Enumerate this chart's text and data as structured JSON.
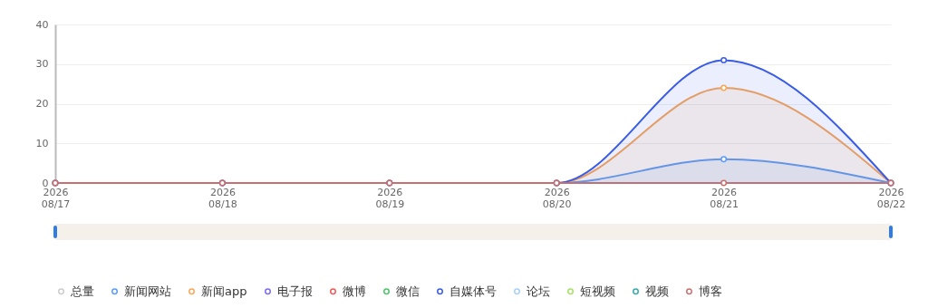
{
  "chart_data": {
    "type": "line",
    "categories": [
      "2026\n08/17",
      "2026\n08/18",
      "2026\n08/19",
      "2026\n08/20",
      "2026\n08/21",
      "2026\n08/22"
    ],
    "ylim": [
      0,
      40
    ],
    "yticks": [
      0,
      10,
      20,
      30,
      40
    ],
    "grid": "y",
    "legend": "bottom",
    "marker": "circle",
    "series": [
      {
        "name": "总量",
        "color": "#cccccc",
        "values": [
          null,
          null,
          null,
          null,
          null,
          null
        ]
      },
      {
        "name": "新闻网站",
        "type": "area",
        "color": "#5b9cf8",
        "values": [
          0,
          0,
          0,
          0,
          6,
          0
        ]
      },
      {
        "name": "新闻app",
        "type": "area",
        "color": "#f8a65a",
        "values": [
          0,
          0,
          0,
          0,
          24,
          0
        ]
      },
      {
        "name": "电子报",
        "color": "#7b6cf0",
        "values": [
          null,
          null,
          null,
          null,
          null,
          null
        ]
      },
      {
        "name": "微博",
        "color": "#f05a5a",
        "values": [
          null,
          null,
          null,
          null,
          null,
          null
        ]
      },
      {
        "name": "微信",
        "color": "#4ec46a",
        "values": [
          null,
          null,
          null,
          null,
          null,
          null
        ]
      },
      {
        "name": "自媒体号",
        "type": "area",
        "color": "#3a5ce6",
        "values": [
          0,
          0,
          0,
          0,
          31,
          0
        ]
      },
      {
        "name": "论坛",
        "color": "#a8d0f8",
        "values": [
          null,
          null,
          null,
          null,
          null,
          null
        ]
      },
      {
        "name": "短视频",
        "color": "#a8e068",
        "values": [
          null,
          null,
          null,
          null,
          null,
          null
        ]
      },
      {
        "name": "视频",
        "color": "#3aaaa8",
        "values": [
          null,
          null,
          null,
          null,
          null,
          null
        ]
      },
      {
        "name": "博客",
        "color": "#c87070",
        "values": [
          0,
          0,
          0,
          0,
          0,
          0
        ]
      }
    ]
  }
}
